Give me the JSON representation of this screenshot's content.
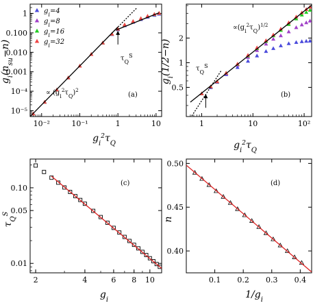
{
  "chart_data": [
    {
      "panel": "(a)",
      "type": "scatter",
      "x_scale": "log",
      "y_scale": "log",
      "xlim": [
        0.005,
        14
      ],
      "ylim": [
        5e-06,
        3
      ],
      "xlabel": "g_i²τ_Q",
      "ylabel": "g_i(n_su−n)",
      "x_ticks": [
        {
          "v": 0.01,
          "label": "10⁻²"
        },
        {
          "v": 0.1,
          "label": "10⁻¹"
        },
        {
          "v": 1,
          "label": "1"
        },
        {
          "v": 10,
          "label": "10"
        }
      ],
      "y_ticks": [
        {
          "v": 1e-05,
          "label": "10⁻⁵"
        },
        {
          "v": 0.0001,
          "label": "10⁻⁴"
        },
        {
          "v": 0.001,
          "label": "0.001"
        },
        {
          "v": 0.01,
          "label": "0.010"
        },
        {
          "v": 0.1,
          "label": "0.100"
        },
        {
          "v": 1,
          "label": "1"
        }
      ],
      "legend": [
        "g_i=4",
        "g_i=8",
        "g_i=16",
        "g_i=32"
      ],
      "legend_placement": "top-left",
      "series": [
        {
          "name": "g_i=4",
          "color": "#4b4bdc",
          "marker": "triangle",
          "x": [
            0.006,
            0.012,
            0.025,
            0.05,
            0.1,
            0.2,
            0.4,
            0.7,
            1.0,
            1.5,
            2.5,
            4,
            6,
            9,
            12
          ],
          "y": [
            7e-06,
            2.8e-05,
            0.00012,
            0.0005,
            0.002,
            0.008,
            0.031,
            0.085,
            0.15,
            0.24,
            0.36,
            0.5,
            0.66,
            0.82,
            0.95
          ]
        },
        {
          "name": "g_i=8",
          "color": "#a040c8",
          "marker": "triangle",
          "x": [
            0.006,
            0.012,
            0.025,
            0.05,
            0.1,
            0.2,
            0.4,
            0.7,
            1.0,
            1.5,
            2.5,
            4,
            6,
            9,
            12
          ],
          "y": [
            7e-06,
            2.8e-05,
            0.00012,
            0.0005,
            0.002,
            0.008,
            0.031,
            0.086,
            0.155,
            0.25,
            0.38,
            0.53,
            0.7,
            0.87,
            1.0
          ]
        },
        {
          "name": "g_i=16",
          "color": "#22cc22",
          "marker": "triangle",
          "x": [
            0.006,
            0.012,
            0.025,
            0.05,
            0.1,
            0.2,
            0.4,
            0.7,
            1.0,
            1.5,
            2.5,
            4,
            6,
            9,
            12
          ],
          "y": [
            7e-06,
            2.8e-05,
            0.00012,
            0.0005,
            0.002,
            0.008,
            0.031,
            0.087,
            0.158,
            0.26,
            0.39,
            0.55,
            0.72,
            0.9,
            1.04
          ]
        },
        {
          "name": "g_i=32",
          "color": "#ee4444",
          "marker": "triangle",
          "x": [
            0.006,
            0.012,
            0.025,
            0.05,
            0.1,
            0.2,
            0.4,
            0.7,
            1.0,
            1.5,
            2.5,
            4,
            6,
            9,
            12
          ],
          "y": [
            7e-06,
            2.8e-05,
            0.00012,
            0.0005,
            0.002,
            0.008,
            0.031,
            0.088,
            0.16,
            0.265,
            0.4,
            0.56,
            0.74,
            0.92,
            1.06
          ]
        }
      ],
      "fit_line": {
        "label": "∝ (g_i²τ_Q)²",
        "style": "solid",
        "color": "#000000",
        "x": [
          0.005,
          1.0
        ],
        "y": [
          5e-06,
          0.2
        ]
      },
      "dotted_line": {
        "style": "dotted",
        "color": "#000000",
        "x": [
          0.8,
          3.2
        ],
        "y": [
          0.128,
          2.0
        ]
      },
      "asymptote_line": {
        "style": "solid",
        "color": "#000000",
        "x": [
          0.9,
          12
        ],
        "y": [
          0.14,
          1.08
        ]
      },
      "annotation": {
        "label": "τ_Q^S",
        "x": 1.0,
        "y": 0.15
      }
    },
    {
      "panel": "(b)",
      "type": "scatter",
      "x_scale": "log",
      "y_scale": "log",
      "xlim": [
        0.5,
        140
      ],
      "ylim": [
        0.22,
        5.2
      ],
      "xlabel": "g_i²τ_Q",
      "ylabel": "g_i(1/2−n)",
      "x_ticks": [
        {
          "v": 1,
          "label": "1"
        },
        {
          "v": 10,
          "label": "10"
        },
        {
          "v": 100,
          "label": "10²"
        }
      ],
      "y_ticks": [
        {
          "v": 0.5,
          "label": "0.5"
        },
        {
          "v": 1,
          "label": "1"
        },
        {
          "v": 2,
          "label": "2"
        }
      ],
      "series": [
        {
          "name": "g_i=4",
          "color": "#4b4bdc",
          "marker": "triangle",
          "x": [
            1,
            1.5,
            2,
            3,
            5,
            8,
            12,
            18,
            25,
            35,
            50,
            70,
            90,
            110,
            130
          ],
          "y": [
            0.42,
            0.5,
            0.58,
            0.72,
            0.88,
            1.05,
            1.22,
            1.38,
            1.5,
            1.62,
            1.72,
            1.78,
            1.82,
            1.84,
            1.85
          ]
        },
        {
          "name": "g_i=8",
          "color": "#a040c8",
          "marker": "triangle",
          "x": [
            1,
            1.5,
            2,
            3,
            5,
            8,
            12,
            18,
            25,
            35,
            50,
            70,
            90,
            110,
            130
          ],
          "y": [
            0.42,
            0.51,
            0.59,
            0.74,
            0.94,
            1.17,
            1.42,
            1.7,
            1.95,
            2.15,
            2.4,
            2.7,
            2.92,
            3.1,
            3.25
          ]
        },
        {
          "name": "g_i=16",
          "color": "#22cc22",
          "marker": "triangle",
          "x": [
            1,
            1.5,
            2,
            3,
            5,
            8,
            12,
            18,
            25,
            35,
            50,
            70,
            90,
            110,
            130
          ],
          "y": [
            0.42,
            0.51,
            0.59,
            0.75,
            0.96,
            1.22,
            1.5,
            1.83,
            2.15,
            2.5,
            2.95,
            3.45,
            3.85,
            4.15,
            4.4
          ]
        },
        {
          "name": "g_i=32",
          "color": "#ee4444",
          "marker": "triangle",
          "x": [
            1,
            1.5,
            2,
            3,
            5,
            8,
            12,
            18,
            25,
            35,
            50,
            70,
            90,
            110,
            130
          ],
          "y": [
            0.42,
            0.51,
            0.59,
            0.75,
            0.97,
            1.24,
            1.53,
            1.87,
            2.2,
            2.6,
            3.1,
            3.65,
            4.1,
            4.5,
            4.8
          ]
        }
      ],
      "fit_line": {
        "label": "∝(g_i²τ_Q)^{1/2}",
        "style": "solid",
        "color": "#000000",
        "x": [
          0.6,
          140
        ],
        "y": [
          0.33,
          5.05
        ]
      },
      "dotted_line": {
        "style": "dotted",
        "color": "#000000",
        "x": [
          0.6,
          2.4
        ],
        "y": [
          0.21,
          0.8
        ]
      },
      "annotation": {
        "label": "τ_Q^S",
        "x": 1.2,
        "y": 0.43
      }
    },
    {
      "panel": "(c)",
      "type": "scatter",
      "x_scale": "log",
      "y_scale": "log",
      "xlim": [
        1.85,
        11.8
      ],
      "ylim": [
        0.0075,
        0.24
      ],
      "xlabel": "g_i",
      "ylabel": "τ_Q^S",
      "x_ticks": [
        {
          "v": 2,
          "label": "2"
        },
        {
          "v": 4,
          "label": "4"
        },
        {
          "v": 6,
          "label": "6"
        },
        {
          "v": 8,
          "label": "8"
        },
        {
          "v": 10,
          "label": "10"
        }
      ],
      "y_ticks": [
        {
          "v": 0.01,
          "label": "0.01"
        },
        {
          "v": 0.05,
          "label": "0.05"
        },
        {
          "v": 0.1,
          "label": "0.10"
        }
      ],
      "series": [
        {
          "name": "",
          "color": "#000000",
          "marker": "square",
          "x": [
            2,
            2.25,
            2.5,
            2.75,
            3,
            3.25,
            3.5,
            3.75,
            4,
            4.5,
            5,
            5.5,
            6,
            6.5,
            7,
            7.5,
            8,
            8.5,
            9,
            9.5,
            10,
            10.5,
            11,
            11.5
          ],
          "y": [
            0.197,
            0.162,
            0.136,
            0.117,
            0.101,
            0.088,
            0.0775,
            0.069,
            0.0615,
            0.0495,
            0.041,
            0.0345,
            0.0295,
            0.0256,
            0.0224,
            0.0198,
            0.0176,
            0.0158,
            0.0142,
            0.0129,
            0.0117,
            0.0107,
            0.0098,
            0.009
          ]
        }
      ],
      "fit_line": {
        "style": "solid",
        "color": "#dd2222",
        "x": [
          2.5,
          11.8
        ],
        "y": [
          0.142,
          0.0086
        ]
      }
    },
    {
      "panel": "(d)",
      "type": "scatter",
      "x_scale": "linear",
      "y_scale": "linear",
      "xlim": [
        0.0,
        0.44
      ],
      "ylim": [
        0.375,
        0.505
      ],
      "xlabel": "1/g_i",
      "ylabel": "n",
      "x_ticks": [
        {
          "v": 0.1,
          "label": "0.1"
        },
        {
          "v": 0.2,
          "label": "0.2"
        },
        {
          "v": 0.3,
          "label": "0.3"
        },
        {
          "v": 0.4,
          "label": "0.4"
        }
      ],
      "y_ticks": [
        {
          "v": 0.4,
          "label": "0.40"
        },
        {
          "v": 0.45,
          "label": "0.45"
        },
        {
          "v": 0.5,
          "label": "0.50"
        }
      ],
      "series": [
        {
          "name": "",
          "color": "#000000",
          "marker": "triangle",
          "x": [
            0.03,
            0.055,
            0.08,
            0.105,
            0.13,
            0.155,
            0.18,
            0.205,
            0.23,
            0.255,
            0.28,
            0.305,
            0.33,
            0.355,
            0.38,
            0.405
          ],
          "y": [
            0.4895,
            0.4825,
            0.4755,
            0.4685,
            0.462,
            0.455,
            0.448,
            0.441,
            0.4345,
            0.4275,
            0.4205,
            0.4135,
            0.4065,
            0.4,
            0.393,
            0.3865
          ]
        }
      ],
      "fit_line": {
        "style": "solid",
        "color": "#dd2222",
        "x": [
          0.0,
          0.44
        ],
        "y": [
          0.498,
          0.376
        ]
      }
    }
  ]
}
